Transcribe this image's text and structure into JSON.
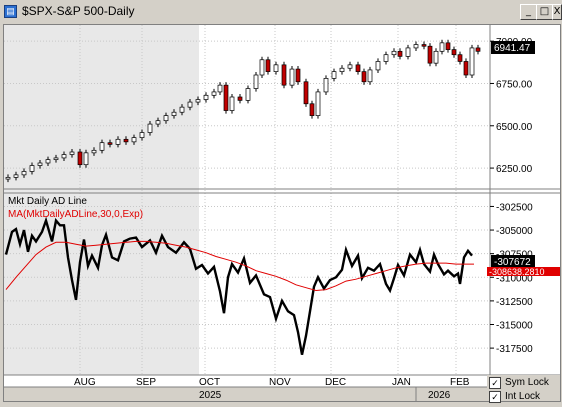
{
  "window": {
    "title": "$SPX-S&P 500-Daily",
    "buttons": [
      "_",
      "□",
      "X"
    ]
  },
  "price_axis": {
    "ticks": [
      "7000.00",
      "6750.00",
      "6500.00",
      "6250.00"
    ],
    "last_label": "6941.47"
  },
  "ad_panel": {
    "title": "Mkt Daily AD Line",
    "ma_label": "MA(MktDailyADLine,30,0,Exp)",
    "ticks": [
      "-302500",
      "-305000",
      "-307500",
      "-310000",
      "-312500",
      "-315000",
      "-317500"
    ],
    "last_label": "-307672",
    "ma_last_label": "-308638.2810",
    "ad_color": "#000000",
    "ma_color": "#e00000"
  },
  "x_axis": {
    "months": [
      "AUG",
      "SEP",
      "OCT",
      "NOV",
      "DEC",
      "JAN",
      "FEB"
    ],
    "years": [
      "2025",
      "2026"
    ]
  },
  "locks": {
    "sym_lock": "Sym Lock",
    "int_lock": "Int Lock",
    "sym_checked": true,
    "int_checked": true
  },
  "chart_data": [
    {
      "type": "candlestick",
      "title": "$SPX-S&P 500-Daily",
      "ylim": [
        6150,
        7060
      ],
      "close_path": [
        [
          0,
          6195
        ],
        [
          8,
          6210
        ],
        [
          16,
          6230
        ],
        [
          24,
          6265
        ],
        [
          32,
          6280
        ],
        [
          40,
          6300
        ],
        [
          48,
          6310
        ],
        [
          56,
          6330
        ],
        [
          64,
          6345
        ],
        [
          72,
          6270
        ],
        [
          78,
          6340
        ],
        [
          86,
          6355
        ],
        [
          94,
          6400
        ],
        [
          102,
          6390
        ],
        [
          110,
          6420
        ],
        [
          118,
          6405
        ],
        [
          126,
          6430
        ],
        [
          134,
          6460
        ],
        [
          142,
          6510
        ],
        [
          150,
          6530
        ],
        [
          158,
          6560
        ],
        [
          166,
          6580
        ],
        [
          174,
          6610
        ],
        [
          182,
          6640
        ],
        [
          190,
          6655
        ],
        [
          198,
          6680
        ],
        [
          206,
          6700
        ],
        [
          212,
          6740
        ],
        [
          218,
          6590
        ],
        [
          224,
          6670
        ],
        [
          232,
          6650
        ],
        [
          240,
          6720
        ],
        [
          248,
          6800
        ],
        [
          254,
          6890
        ],
        [
          260,
          6820
        ],
        [
          268,
          6860
        ],
        [
          276,
          6740
        ],
        [
          284,
          6835
        ],
        [
          290,
          6760
        ],
        [
          298,
          6630
        ],
        [
          304,
          6560
        ],
        [
          310,
          6700
        ],
        [
          318,
          6780
        ],
        [
          326,
          6820
        ],
        [
          334,
          6840
        ],
        [
          342,
          6860
        ],
        [
          350,
          6820
        ],
        [
          356,
          6760
        ],
        [
          362,
          6830
        ],
        [
          370,
          6880
        ],
        [
          378,
          6920
        ],
        [
          386,
          6940
        ],
        [
          392,
          6910
        ],
        [
          400,
          6960
        ],
        [
          408,
          6980
        ],
        [
          416,
          6970
        ],
        [
          422,
          6870
        ],
        [
          428,
          6940
        ],
        [
          434,
          6990
        ],
        [
          440,
          6950
        ],
        [
          446,
          6920
        ],
        [
          452,
          6880
        ],
        [
          458,
          6800
        ],
        [
          464,
          6960
        ],
        [
          470,
          6940
        ]
      ]
    },
    {
      "type": "line",
      "title": "Mkt Daily AD Line",
      "ylim": [
        -319500,
        -301500
      ],
      "series": [
        {
          "name": "Mkt Daily AD Line",
          "color": "#000000",
          "points": [
            [
              0,
              -307600
            ],
            [
              6,
              -305200
            ],
            [
              10,
              -304900
            ],
            [
              14,
              -306500
            ],
            [
              18,
              -305000
            ],
            [
              22,
              -307300
            ],
            [
              26,
              -305600
            ],
            [
              30,
              -306200
            ],
            [
              36,
              -305200
            ],
            [
              40,
              -304000
            ],
            [
              46,
              -306200
            ],
            [
              50,
              -304000
            ],
            [
              54,
              -304500
            ],
            [
              58,
              -304500
            ],
            [
              62,
              -307900
            ],
            [
              66,
              -310300
            ],
            [
              70,
              -312400
            ],
            [
              74,
              -308400
            ],
            [
              78,
              -306000
            ],
            [
              82,
              -308800
            ],
            [
              86,
              -307700
            ],
            [
              92,
              -309000
            ],
            [
              96,
              -306600
            ],
            [
              100,
              -305500
            ],
            [
              106,
              -307900
            ],
            [
              112,
              -308200
            ],
            [
              118,
              -306200
            ],
            [
              124,
              -305900
            ],
            [
              130,
              -305800
            ],
            [
              136,
              -306800
            ],
            [
              144,
              -306100
            ],
            [
              150,
              -307400
            ],
            [
              156,
              -305600
            ],
            [
              162,
              -306800
            ],
            [
              170,
              -307400
            ],
            [
              178,
              -306300
            ],
            [
              184,
              -307000
            ],
            [
              190,
              -309100
            ],
            [
              196,
              -308700
            ],
            [
              202,
              -309600
            ],
            [
              208,
              -308900
            ],
            [
              214,
              -311500
            ],
            [
              218,
              -313800
            ],
            [
              222,
              -310000
            ],
            [
              226,
              -308600
            ],
            [
              232,
              -309500
            ],
            [
              238,
              -308000
            ],
            [
              244,
              -310600
            ],
            [
              250,
              -309800
            ],
            [
              258,
              -311800
            ],
            [
              264,
              -312100
            ],
            [
              270,
              -314400
            ],
            [
              276,
              -312500
            ],
            [
              282,
              -313600
            ],
            [
              288,
              -314000
            ],
            [
              292,
              -315800
            ],
            [
              296,
              -318200
            ],
            [
              300,
              -316200
            ],
            [
              304,
              -313600
            ],
            [
              308,
              -311000
            ],
            [
              312,
              -310000
            ],
            [
              318,
              -311200
            ],
            [
              324,
              -310300
            ],
            [
              330,
              -310000
            ],
            [
              336,
              -309200
            ],
            [
              340,
              -307100
            ],
            [
              346,
              -308800
            ],
            [
              352,
              -307700
            ],
            [
              356,
              -310100
            ],
            [
              362,
              -309000
            ],
            [
              368,
              -309300
            ],
            [
              374,
              -308600
            ],
            [
              380,
              -310700
            ],
            [
              384,
              -311400
            ],
            [
              388,
              -310100
            ],
            [
              392,
              -308700
            ],
            [
              398,
              -309800
            ],
            [
              404,
              -307600
            ],
            [
              410,
              -308400
            ],
            [
              414,
              -307100
            ],
            [
              418,
              -308600
            ],
            [
              424,
              -309400
            ],
            [
              428,
              -307600
            ],
            [
              432,
              -308600
            ],
            [
              438,
              -309700
            ],
            [
              442,
              -309300
            ],
            [
              448,
              -309900
            ],
            [
              452,
              -309600
            ],
            [
              454,
              -310700
            ],
            [
              458,
              -307900
            ],
            [
              462,
              -307200
            ],
            [
              466,
              -307700
            ]
          ]
        },
        {
          "name": "MA(MktDailyADLine,30,0,Exp)",
          "color": "#e00000",
          "points": [
            [
              0,
              -311300
            ],
            [
              10,
              -310000
            ],
            [
              20,
              -308800
            ],
            [
              30,
              -307600
            ],
            [
              40,
              -306800
            ],
            [
              50,
              -306300
            ],
            [
              60,
              -306300
            ],
            [
              70,
              -306500
            ],
            [
              80,
              -306700
            ],
            [
              90,
              -306600
            ],
            [
              100,
              -306500
            ],
            [
              110,
              -306400
            ],
            [
              120,
              -306300
            ],
            [
              130,
              -306200
            ],
            [
              140,
              -306200
            ],
            [
              150,
              -306300
            ],
            [
              160,
              -306400
            ],
            [
              170,
              -306600
            ],
            [
              180,
              -306800
            ],
            [
              190,
              -307100
            ],
            [
              200,
              -307400
            ],
            [
              210,
              -307800
            ],
            [
              220,
              -308100
            ],
            [
              230,
              -308400
            ],
            [
              240,
              -308800
            ],
            [
              250,
              -309300
            ],
            [
              260,
              -309600
            ],
            [
              270,
              -309900
            ],
            [
              280,
              -310300
            ],
            [
              290,
              -310800
            ],
            [
              300,
              -311100
            ],
            [
              310,
              -311400
            ],
            [
              320,
              -311300
            ],
            [
              330,
              -310900
            ],
            [
              340,
              -310400
            ],
            [
              350,
              -310200
            ],
            [
              360,
              -309900
            ],
            [
              370,
              -309600
            ],
            [
              380,
              -309300
            ],
            [
              390,
              -309000
            ],
            [
              400,
              -308800
            ],
            [
              410,
              -308600
            ],
            [
              420,
              -308500
            ],
            [
              430,
              -308500
            ],
            [
              440,
              -308500
            ],
            [
              450,
              -308600
            ],
            [
              460,
              -308600
            ],
            [
              468,
              -308600
            ]
          ]
        }
      ]
    }
  ]
}
